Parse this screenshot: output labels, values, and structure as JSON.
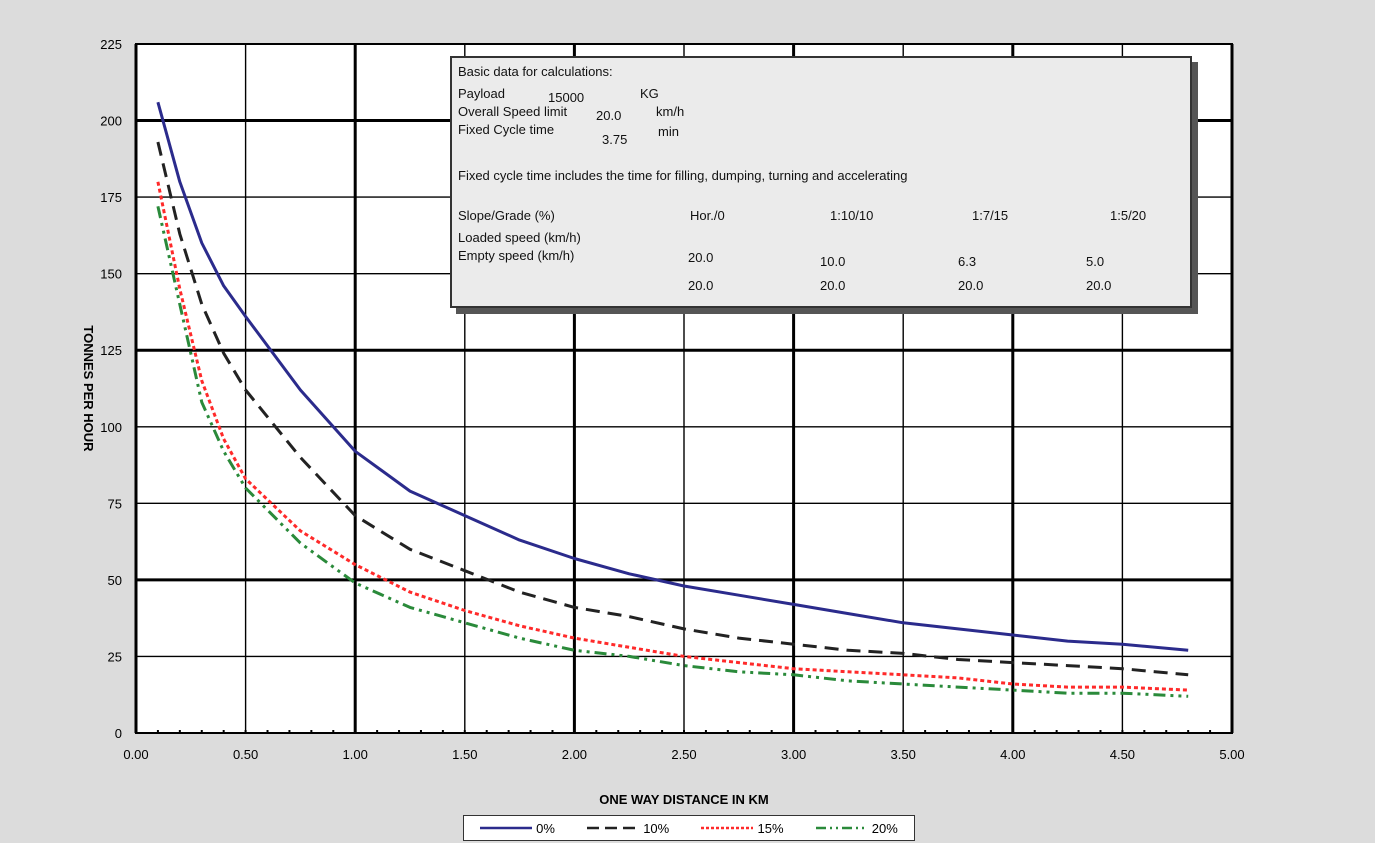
{
  "chart_data": {
    "type": "line",
    "xlabel": "ONE WAY DISTANCE IN KM",
    "ylabel": "TONNES PER HOUR",
    "xlim": [
      0,
      5
    ],
    "ylim": [
      0,
      225
    ],
    "x_ticks": [
      "0.00",
      "0.50",
      "1.00",
      "1.50",
      "2.00",
      "2.50",
      "3.00",
      "3.50",
      "4.00",
      "4.50",
      "5.00"
    ],
    "y_ticks": [
      "0",
      "25",
      "50",
      "75",
      "100",
      "125",
      "150",
      "175",
      "200",
      "225"
    ],
    "grid": true,
    "legend_position": "bottom",
    "series": [
      {
        "name": "0%",
        "color": "#2b2b8c",
        "dash": "solid",
        "x": [
          0.1,
          0.2,
          0.3,
          0.4,
          0.5,
          0.75,
          1.0,
          1.25,
          1.5,
          1.75,
          2.0,
          2.25,
          2.5,
          2.75,
          3.0,
          3.25,
          3.5,
          3.75,
          4.0,
          4.25,
          4.5,
          4.8
        ],
        "y": [
          206,
          180,
          160,
          146,
          136,
          112,
          92,
          79,
          71,
          63,
          57,
          52,
          48,
          45,
          42,
          39,
          36,
          34,
          32,
          30,
          29,
          27
        ]
      },
      {
        "name": "10%",
        "color": "#222222",
        "dash": "longdash",
        "x": [
          0.1,
          0.2,
          0.3,
          0.4,
          0.5,
          0.75,
          1.0,
          1.25,
          1.5,
          1.75,
          2.0,
          2.25,
          2.5,
          2.75,
          3.0,
          3.25,
          3.5,
          3.75,
          4.0,
          4.25,
          4.5,
          4.8
        ],
        "y": [
          193,
          163,
          140,
          124,
          112,
          90,
          71,
          60,
          53,
          46,
          41,
          38,
          34,
          31,
          29,
          27,
          26,
          24,
          23,
          22,
          21,
          19
        ]
      },
      {
        "name": "15%",
        "color": "#ff2a2a",
        "dash": "dotted",
        "x": [
          0.1,
          0.2,
          0.3,
          0.4,
          0.5,
          0.75,
          1.0,
          1.25,
          1.5,
          1.75,
          2.0,
          2.25,
          2.5,
          2.75,
          3.0,
          3.25,
          3.5,
          3.75,
          4.0,
          4.25,
          4.5,
          4.8
        ],
        "y": [
          180,
          145,
          115,
          96,
          83,
          66,
          55,
          46,
          40,
          35,
          31,
          28,
          25,
          23,
          21,
          20,
          19,
          18,
          16,
          15,
          15,
          14
        ]
      },
      {
        "name": "20%",
        "color": "#2a8a3a",
        "dash": "dashdotdot",
        "x": [
          0.1,
          0.2,
          0.3,
          0.4,
          0.5,
          0.75,
          1.0,
          1.25,
          1.5,
          1.75,
          2.0,
          2.25,
          2.5,
          2.75,
          3.0,
          3.25,
          3.5,
          3.75,
          4.0,
          4.25,
          4.5,
          4.8
        ],
        "y": [
          172,
          140,
          108,
          92,
          80,
          62,
          49,
          41,
          36,
          31,
          27,
          25,
          22,
          20,
          19,
          17,
          16,
          15,
          14,
          13,
          13,
          12
        ]
      }
    ]
  },
  "info_box": {
    "title": "Basic data for calculations:",
    "payload_label": "Payload",
    "payload_value": "15000",
    "payload_unit": "KG",
    "speed_limit_label": "Overall Speed limit",
    "speed_limit_value": "20.0",
    "speed_limit_unit": "km/h",
    "cycle_label": "Fixed Cycle time",
    "cycle_value": "3.75",
    "cycle_unit": "min",
    "note": "Fixed cycle time includes the time for filling, dumping, turning and accelerating",
    "slope_label": "Slope/Grade (%)",
    "loaded_label": "Loaded speed (km/h)",
    "empty_label": "Empty speed (km/h)",
    "grades": [
      "Hor./0",
      "1:10/10",
      "1:7/15",
      "1:5/20"
    ],
    "loaded_speeds": [
      "20.0",
      "10.0",
      "6.3",
      "5.0"
    ],
    "empty_speeds": [
      "20.0",
      "20.0",
      "20.0",
      "20.0"
    ]
  }
}
